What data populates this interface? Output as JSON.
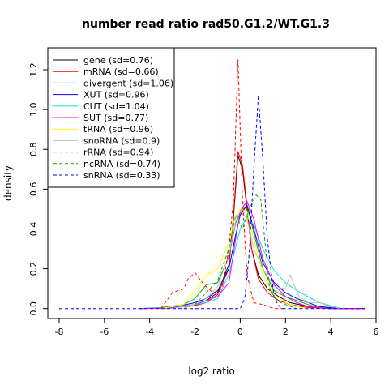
{
  "chart_data": {
    "type": "line",
    "title": "number read ratio rad50.G1.2/WT.G1.3",
    "xlabel": "log2 ratio",
    "ylabel": "density",
    "xlim": [
      -8.5,
      6
    ],
    "ylim": [
      -0.05,
      1.31
    ],
    "x_ticks": [
      -8,
      -6,
      -4,
      -2,
      0,
      2,
      4,
      6
    ],
    "x_tick_labels": [
      "-8",
      "-6",
      "-4",
      "-2",
      "0",
      "2",
      "4",
      "6"
    ],
    "y_ticks": [
      0.0,
      0.2,
      0.4,
      0.6,
      0.8,
      1.0,
      1.2
    ],
    "y_tick_labels": [
      "0.0",
      "0.2",
      "0.4",
      "0.6",
      "0.8",
      "1.0",
      "1.2"
    ],
    "legend_position": "top-left",
    "series": [
      {
        "name": "gene (sd=0.76)",
        "color": "#000000",
        "dash": "solid",
        "x": [
          -4.5,
          -3,
          -2,
          -1.5,
          -1,
          -0.5,
          -0.3,
          -0.1,
          0.1,
          0.3,
          0.5,
          0.8,
          1.2,
          1.7,
          2.2,
          3,
          4,
          5.5
        ],
        "y": [
          0,
          0.005,
          0.02,
          0.04,
          0.08,
          0.22,
          0.45,
          0.77,
          0.7,
          0.5,
          0.3,
          0.17,
          0.1,
          0.06,
          0.03,
          0.01,
          0,
          0
        ]
      },
      {
        "name": "mRNA (sd=0.66)",
        "color": "#ff0000",
        "dash": "solid",
        "x": [
          -4.5,
          -3,
          -2,
          -1.5,
          -1,
          -0.5,
          -0.3,
          -0.1,
          0.1,
          0.3,
          0.5,
          0.8,
          1.2,
          1.7,
          2.2,
          3,
          4,
          5.5
        ],
        "y": [
          0,
          0.003,
          0.015,
          0.03,
          0.07,
          0.2,
          0.47,
          0.79,
          0.72,
          0.52,
          0.3,
          0.15,
          0.08,
          0.04,
          0.02,
          0.005,
          0,
          0
        ]
      },
      {
        "name": "divergent (sd=1.06)",
        "color": "#00aa00",
        "dash": "solid",
        "x": [
          -4.5,
          -3.5,
          -2.5,
          -2,
          -1.5,
          -1,
          -0.5,
          -0.2,
          0,
          0.3,
          0.6,
          1,
          1.5,
          2,
          2.5,
          3,
          3.5,
          4.5
        ],
        "y": [
          0,
          0.005,
          0.02,
          0.05,
          0.12,
          0.13,
          0.26,
          0.43,
          0.48,
          0.52,
          0.38,
          0.2,
          0.09,
          0.06,
          0.04,
          0.02,
          0.005,
          0
        ]
      },
      {
        "name": "XUT (sd=0.96)",
        "color": "#0000ff",
        "dash": "solid",
        "x": [
          -4.5,
          -3,
          -2,
          -1.5,
          -1,
          -0.5,
          -0.2,
          0,
          0.3,
          0.6,
          1,
          1.5,
          2,
          2.5,
          3,
          3.5,
          4.5
        ],
        "y": [
          0,
          0.005,
          0.03,
          0.05,
          0.09,
          0.2,
          0.37,
          0.47,
          0.52,
          0.4,
          0.23,
          0.13,
          0.08,
          0.05,
          0.03,
          0.01,
          0
        ]
      },
      {
        "name": "CUT (sd=1.04)",
        "color": "#00e5e5",
        "dash": "solid",
        "x": [
          -4.5,
          -3,
          -2,
          -1.5,
          -1,
          -0.5,
          0,
          0.3,
          0.6,
          1,
          1.5,
          2,
          2.5,
          3,
          3.5,
          4.5
        ],
        "y": [
          0,
          0.005,
          0.02,
          0.03,
          0.05,
          0.17,
          0.4,
          0.46,
          0.42,
          0.3,
          0.19,
          0.13,
          0.09,
          0.06,
          0.03,
          0
        ]
      },
      {
        "name": "SUT (sd=0.77)",
        "color": "#ff00ff",
        "dash": "solid",
        "x": [
          -4.5,
          -3,
          -2,
          -1.5,
          -1,
          -0.5,
          -0.2,
          0,
          0.3,
          0.6,
          1,
          1.5,
          2,
          2.5,
          3,
          4,
          5.5
        ],
        "y": [
          0,
          0.003,
          0.02,
          0.04,
          0.06,
          0.13,
          0.35,
          0.49,
          0.54,
          0.45,
          0.25,
          0.12,
          0.06,
          0.03,
          0.01,
          0,
          0
        ]
      },
      {
        "name": "tRNA (sd=0.96)",
        "color": "#ffff00",
        "dash": "solid",
        "x": [
          -3.5,
          -2.5,
          -2,
          -1.5,
          -1,
          -0.5,
          -0.2,
          0,
          0.3,
          0.6,
          1,
          1.5,
          2,
          2.5,
          3
        ],
        "y": [
          0,
          0.02,
          0.09,
          0.17,
          0.2,
          0.33,
          0.47,
          0.5,
          0.49,
          0.35,
          0.17,
          0.07,
          0.03,
          0.01,
          0
        ]
      },
      {
        "name": "snoRNA (sd=0.9)",
        "color": "#bebebe",
        "dash": "solid",
        "x": [
          -3,
          -2,
          -1.5,
          -1,
          -0.5,
          -0.2,
          0,
          0.3,
          0.6,
          1,
          1.5,
          2,
          2.2,
          2.6,
          3,
          3.5,
          4,
          4.5
        ],
        "y": [
          0,
          0.02,
          0.05,
          0.11,
          0.27,
          0.44,
          0.49,
          0.45,
          0.3,
          0.2,
          0.11,
          0.1,
          0.17,
          0.06,
          0.03,
          0.03,
          0.01,
          0
        ]
      },
      {
        "name": "rRNA (sd=0.94)",
        "color": "#ff0000",
        "dash": "dashed",
        "x": [
          -3.5,
          -3,
          -2.5,
          -2.3,
          -2,
          -1.6,
          -1.2,
          -0.8,
          -0.5,
          -0.3,
          -0.1,
          0.1,
          0.3,
          0.6,
          1,
          1.5,
          2
        ],
        "y": [
          0,
          0.08,
          0.1,
          0.15,
          0.18,
          0.12,
          0.08,
          0.1,
          0.3,
          0.55,
          1.25,
          0.55,
          0.17,
          0.03,
          0.02,
          0,
          0
        ]
      },
      {
        "name": "ncRNA (sd=0.74)",
        "color": "#00aa00",
        "dash": "dashed",
        "x": [
          -2.5,
          -2,
          -1.5,
          -1,
          -0.5,
          -0.2,
          0.1,
          0.4,
          0.7,
          0.9,
          1.1,
          1.3,
          1.6,
          2,
          2.5
        ],
        "y": [
          0,
          0.02,
          0.08,
          0.14,
          0.3,
          0.47,
          0.4,
          0.5,
          0.57,
          0.55,
          0.33,
          0.1,
          0.04,
          0.02,
          0
        ]
      },
      {
        "name": "snRNA (sd=0.33)",
        "color": "#0000ff",
        "dash": "dashed",
        "x": [
          -8,
          -1,
          -0.3,
          0,
          0.2,
          0.4,
          0.6,
          0.8,
          1,
          1.2,
          1.5,
          1.8,
          5.5
        ],
        "y": [
          0,
          0,
          0,
          0,
          0.05,
          0.28,
          0.7,
          1.07,
          0.75,
          0.35,
          0.05,
          0,
          0
        ]
      }
    ]
  }
}
